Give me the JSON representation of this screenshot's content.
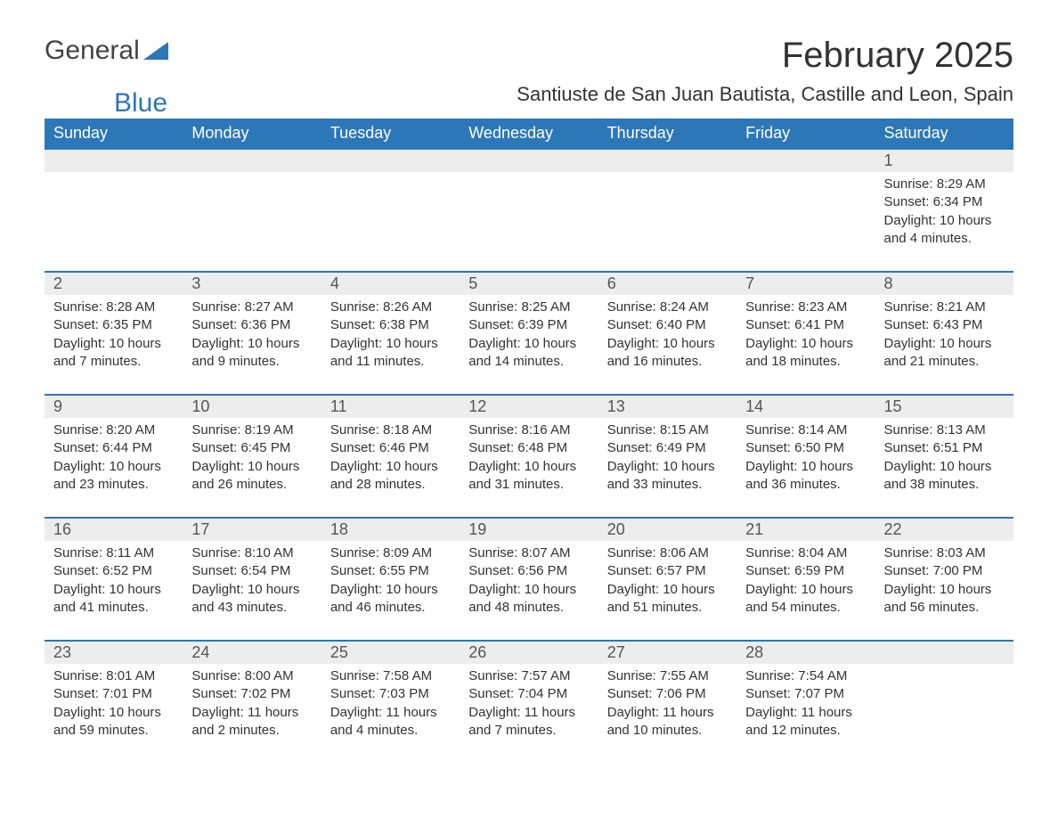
{
  "logo": {
    "general": "General",
    "blue": "Blue",
    "shape_color": "#2c77b8"
  },
  "title": "February 2025",
  "subtitle": "Santiuste de San Juan Bautista, Castille and Leon, Spain",
  "colors": {
    "header_bg": "#2c77b8",
    "header_text": "#ffffff",
    "daynum_bg": "#ededed",
    "row_border": "#2c77b8",
    "body_text": "#333333"
  },
  "day_headers": [
    "Sunday",
    "Monday",
    "Tuesday",
    "Wednesday",
    "Thursday",
    "Friday",
    "Saturday"
  ],
  "weeks": [
    [
      null,
      null,
      null,
      null,
      null,
      null,
      {
        "n": "1",
        "sr": "Sunrise: 8:29 AM",
        "ss": "Sunset: 6:34 PM",
        "dl": "Daylight: 10 hours and 4 minutes."
      }
    ],
    [
      {
        "n": "2",
        "sr": "Sunrise: 8:28 AM",
        "ss": "Sunset: 6:35 PM",
        "dl": "Daylight: 10 hours and 7 minutes."
      },
      {
        "n": "3",
        "sr": "Sunrise: 8:27 AM",
        "ss": "Sunset: 6:36 PM",
        "dl": "Daylight: 10 hours and 9 minutes."
      },
      {
        "n": "4",
        "sr": "Sunrise: 8:26 AM",
        "ss": "Sunset: 6:38 PM",
        "dl": "Daylight: 10 hours and 11 minutes."
      },
      {
        "n": "5",
        "sr": "Sunrise: 8:25 AM",
        "ss": "Sunset: 6:39 PM",
        "dl": "Daylight: 10 hours and 14 minutes."
      },
      {
        "n": "6",
        "sr": "Sunrise: 8:24 AM",
        "ss": "Sunset: 6:40 PM",
        "dl": "Daylight: 10 hours and 16 minutes."
      },
      {
        "n": "7",
        "sr": "Sunrise: 8:23 AM",
        "ss": "Sunset: 6:41 PM",
        "dl": "Daylight: 10 hours and 18 minutes."
      },
      {
        "n": "8",
        "sr": "Sunrise: 8:21 AM",
        "ss": "Sunset: 6:43 PM",
        "dl": "Daylight: 10 hours and 21 minutes."
      }
    ],
    [
      {
        "n": "9",
        "sr": "Sunrise: 8:20 AM",
        "ss": "Sunset: 6:44 PM",
        "dl": "Daylight: 10 hours and 23 minutes."
      },
      {
        "n": "10",
        "sr": "Sunrise: 8:19 AM",
        "ss": "Sunset: 6:45 PM",
        "dl": "Daylight: 10 hours and 26 minutes."
      },
      {
        "n": "11",
        "sr": "Sunrise: 8:18 AM",
        "ss": "Sunset: 6:46 PM",
        "dl": "Daylight: 10 hours and 28 minutes."
      },
      {
        "n": "12",
        "sr": "Sunrise: 8:16 AM",
        "ss": "Sunset: 6:48 PM",
        "dl": "Daylight: 10 hours and 31 minutes."
      },
      {
        "n": "13",
        "sr": "Sunrise: 8:15 AM",
        "ss": "Sunset: 6:49 PM",
        "dl": "Daylight: 10 hours and 33 minutes."
      },
      {
        "n": "14",
        "sr": "Sunrise: 8:14 AM",
        "ss": "Sunset: 6:50 PM",
        "dl": "Daylight: 10 hours and 36 minutes."
      },
      {
        "n": "15",
        "sr": "Sunrise: 8:13 AM",
        "ss": "Sunset: 6:51 PM",
        "dl": "Daylight: 10 hours and 38 minutes."
      }
    ],
    [
      {
        "n": "16",
        "sr": "Sunrise: 8:11 AM",
        "ss": "Sunset: 6:52 PM",
        "dl": "Daylight: 10 hours and 41 minutes."
      },
      {
        "n": "17",
        "sr": "Sunrise: 8:10 AM",
        "ss": "Sunset: 6:54 PM",
        "dl": "Daylight: 10 hours and 43 minutes."
      },
      {
        "n": "18",
        "sr": "Sunrise: 8:09 AM",
        "ss": "Sunset: 6:55 PM",
        "dl": "Daylight: 10 hours and 46 minutes."
      },
      {
        "n": "19",
        "sr": "Sunrise: 8:07 AM",
        "ss": "Sunset: 6:56 PM",
        "dl": "Daylight: 10 hours and 48 minutes."
      },
      {
        "n": "20",
        "sr": "Sunrise: 8:06 AM",
        "ss": "Sunset: 6:57 PM",
        "dl": "Daylight: 10 hours and 51 minutes."
      },
      {
        "n": "21",
        "sr": "Sunrise: 8:04 AM",
        "ss": "Sunset: 6:59 PM",
        "dl": "Daylight: 10 hours and 54 minutes."
      },
      {
        "n": "22",
        "sr": "Sunrise: 8:03 AM",
        "ss": "Sunset: 7:00 PM",
        "dl": "Daylight: 10 hours and 56 minutes."
      }
    ],
    [
      {
        "n": "23",
        "sr": "Sunrise: 8:01 AM",
        "ss": "Sunset: 7:01 PM",
        "dl": "Daylight: 10 hours and 59 minutes."
      },
      {
        "n": "24",
        "sr": "Sunrise: 8:00 AM",
        "ss": "Sunset: 7:02 PM",
        "dl": "Daylight: 11 hours and 2 minutes."
      },
      {
        "n": "25",
        "sr": "Sunrise: 7:58 AM",
        "ss": "Sunset: 7:03 PM",
        "dl": "Daylight: 11 hours and 4 minutes."
      },
      {
        "n": "26",
        "sr": "Sunrise: 7:57 AM",
        "ss": "Sunset: 7:04 PM",
        "dl": "Daylight: 11 hours and 7 minutes."
      },
      {
        "n": "27",
        "sr": "Sunrise: 7:55 AM",
        "ss": "Sunset: 7:06 PM",
        "dl": "Daylight: 11 hours and 10 minutes."
      },
      {
        "n": "28",
        "sr": "Sunrise: 7:54 AM",
        "ss": "Sunset: 7:07 PM",
        "dl": "Daylight: 11 hours and 12 minutes."
      },
      null
    ]
  ]
}
